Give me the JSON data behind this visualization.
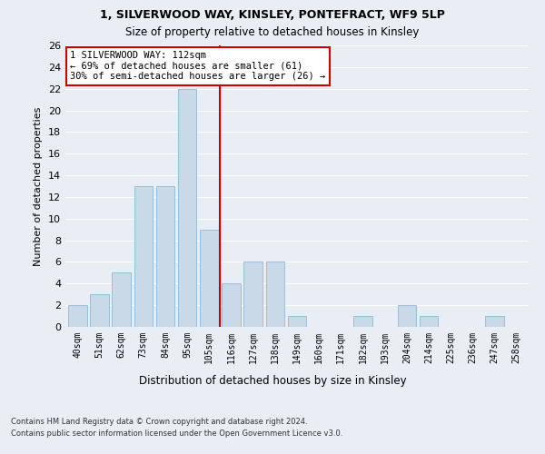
{
  "title1": "1, SILVERWOOD WAY, KINSLEY, PONTEFRACT, WF9 5LP",
  "title2": "Size of property relative to detached houses in Kinsley",
  "xlabel": "Distribution of detached houses by size in Kinsley",
  "ylabel": "Number of detached properties",
  "categories": [
    "40sqm",
    "51sqm",
    "62sqm",
    "73sqm",
    "84sqm",
    "95sqm",
    "105sqm",
    "116sqm",
    "127sqm",
    "138sqm",
    "149sqm",
    "160sqm",
    "171sqm",
    "182sqm",
    "193sqm",
    "204sqm",
    "214sqm",
    "225sqm",
    "236sqm",
    "247sqm",
    "258sqm"
  ],
  "values": [
    2,
    3,
    5,
    13,
    13,
    22,
    9,
    4,
    6,
    6,
    1,
    0,
    0,
    1,
    0,
    2,
    1,
    0,
    0,
    1,
    0
  ],
  "bar_color": "#c9d9e8",
  "bar_edge_color": "#8fb8d4",
  "vline_x": 6.5,
  "vline_color": "#cc0000",
  "annotation_line1": "1 SILVERWOOD WAY: 112sqm",
  "annotation_line2": "← 69% of detached houses are smaller (61)",
  "annotation_line3": "30% of semi-detached houses are larger (26) →",
  "annotation_box_color": "#ffffff",
  "annotation_box_edge_color": "#cc0000",
  "background_color": "#e8eef4",
  "fig_background_color": "#e8eef4",
  "grid_color": "#ffffff",
  "footnote1": "Contains HM Land Registry data © Crown copyright and database right 2024.",
  "footnote2": "Contains public sector information licensed under the Open Government Licence v3.0.",
  "ylim": [
    0,
    26
  ],
  "yticks": [
    0,
    2,
    4,
    6,
    8,
    10,
    12,
    14,
    16,
    18,
    20,
    22,
    24,
    26
  ]
}
